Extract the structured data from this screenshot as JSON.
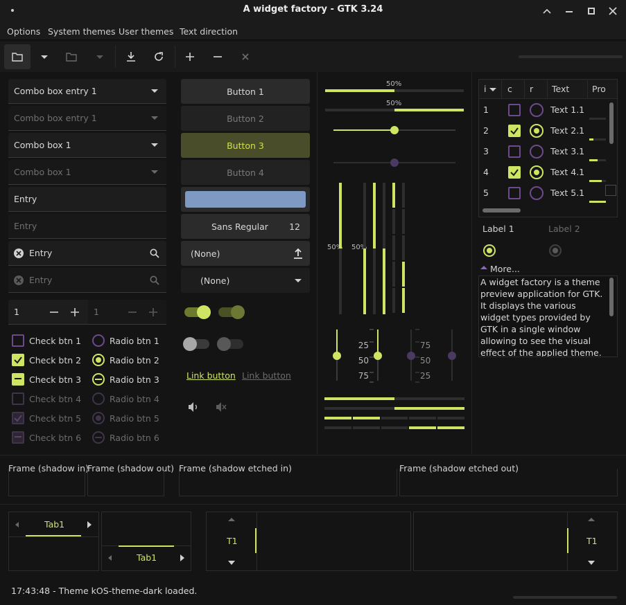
{
  "window": {
    "title": "A widget factory - GTK 3.24"
  },
  "menu": [
    "Options",
    "System themes",
    "User themes",
    "Text direction"
  ],
  "combos": [
    {
      "label": "Combo box entry 1"
    },
    {
      "label": "Combo box entry 1"
    },
    {
      "label": "Combo box 1"
    },
    {
      "label": "Combo box 1"
    }
  ],
  "entries": {
    "entry1": "Entry",
    "entry2_placeholder": "Entry",
    "search1": "Entry",
    "search2": "Entry"
  },
  "spin": {
    "value1": "1",
    "value2": "1"
  },
  "checks": [
    {
      "label": "Check btn 1",
      "state": "off"
    },
    {
      "label": "Check btn 2",
      "state": "on"
    },
    {
      "label": "Check btn 3",
      "state": "mixed"
    },
    {
      "label": "Check btn 4",
      "state": "off-disabled"
    },
    {
      "label": "Check btn 5",
      "state": "on-disabled"
    },
    {
      "label": "Check btn 6",
      "state": "mixed-disabled"
    }
  ],
  "radios": [
    {
      "label": "Radio btn 1",
      "state": "off"
    },
    {
      "label": "Radio btn 2",
      "state": "on"
    },
    {
      "label": "Radio btn 3",
      "state": "mixed"
    },
    {
      "label": "Radio btn 4",
      "state": "off-disabled"
    },
    {
      "label": "Radio btn 5",
      "state": "on-disabled"
    },
    {
      "label": "Radio btn 6",
      "state": "mixed-disabled"
    }
  ],
  "buttons": {
    "b1": "Button 1",
    "b2": "Button 2",
    "b3": "Button 3",
    "b4": "Button 4"
  },
  "font_button": {
    "family": "Sans Regular",
    "size": "12"
  },
  "file_chooser": {
    "value": "(None)"
  },
  "app_chooser": {
    "value": "(None)"
  },
  "links": {
    "enabled": "Link button",
    "disabled": "Link button"
  },
  "scales": {
    "h1_value": "50%",
    "h2_value": "50%",
    "v1_value": "50%",
    "v2_value": "50%"
  },
  "scale_marks": {
    "left": [
      "25",
      "50",
      "75"
    ],
    "right": [
      "75",
      "50",
      "25"
    ]
  },
  "tree": {
    "columns": [
      "i",
      "c",
      "r",
      "Text",
      "Pro"
    ],
    "rows": [
      {
        "i": "1",
        "c": false,
        "r": false,
        "text": "Text 1.1",
        "progress": 0.0
      },
      {
        "i": "2",
        "c": true,
        "r": true,
        "text": "Text 2.1",
        "progress": 0.25
      },
      {
        "i": "3",
        "c": false,
        "r": false,
        "text": "Text 3.1",
        "progress": 0.5
      },
      {
        "i": "4",
        "c": true,
        "r": true,
        "text": "Text 4.1",
        "progress": 0.75
      },
      {
        "i": "5",
        "c": false,
        "r": false,
        "text": "Text 5.1",
        "progress": 1.0
      }
    ]
  },
  "labels": {
    "label1": "Label 1",
    "label2": "Label 2"
  },
  "expander": {
    "label": "More..."
  },
  "textview": {
    "text": "A widget factory is a theme preview application for GTK. It displays the various widget types provided by GTK in a single window allowing to see the visual effect of the applied theme. ~ A widget factory is a"
  },
  "frames": {
    "shadow_in": "Frame (shadow in)",
    "shadow_out": "Frame (shadow out)",
    "etched_in": "Frame (shadow etched in)",
    "etched_out": "Frame (shadow etched out)"
  },
  "tabs": {
    "tab1_top": "Tab1",
    "tab1_bottom": "Tab1",
    "t1_left": "T1",
    "t1_right": "T1"
  },
  "status": {
    "text": "17:43:48 - Theme kOS-theme-dark loaded."
  },
  "colors": {
    "accent": "#cde563",
    "purple": "#6c4a8c",
    "background": "#141414"
  }
}
